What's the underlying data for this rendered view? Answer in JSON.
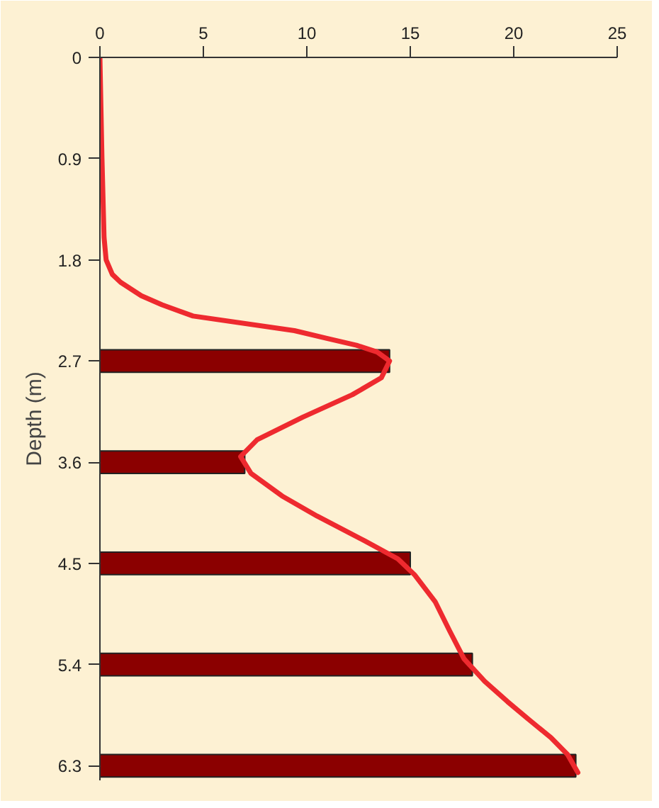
{
  "chart_data": {
    "type": "bar",
    "orientation": "horizontal",
    "ylabel": "Depth (m)",
    "xlim": [
      0,
      25
    ],
    "xticks": [
      0,
      5,
      10,
      15,
      20,
      25
    ],
    "ylim": [
      6.43,
      0
    ],
    "yticks": [
      0,
      0.9,
      1.8,
      2.7,
      3.6,
      4.5,
      5.4,
      6.3
    ],
    "grid": false,
    "series": [
      {
        "color": "#8b0000",
        "x": [
          2.7,
          3.6,
          4.5,
          5.4,
          6.3
        ],
        "values": [
          14,
          7,
          15,
          18,
          23
        ]
      },
      {
        "type": "line",
        "color": "#ee2a2f",
        "x": [
          0,
          0.9,
          1.6,
          1.8,
          1.93,
          2.0,
          2.12,
          2.2,
          2.3,
          2.43,
          2.5,
          2.56,
          2.62,
          2.7,
          2.85,
          3.0,
          3.2,
          3.4,
          3.55,
          3.7,
          3.9,
          4.08,
          4.3,
          4.46,
          4.6,
          4.84,
          5.1,
          5.35,
          5.55,
          5.73,
          5.9,
          6.05,
          6.2,
          6.36
        ],
        "values": [
          0,
          0.1,
          0.2,
          0.3,
          0.6,
          1.0,
          2.0,
          3.0,
          4.5,
          9.4,
          11.0,
          12.4,
          13.4,
          14.0,
          13.6,
          12.2,
          9.8,
          7.6,
          6.8,
          7.3,
          8.8,
          10.5,
          12.8,
          14.4,
          15.2,
          16.2,
          16.9,
          17.6,
          18.6,
          19.7,
          20.8,
          21.8,
          22.6,
          23.1
        ]
      }
    ]
  }
}
